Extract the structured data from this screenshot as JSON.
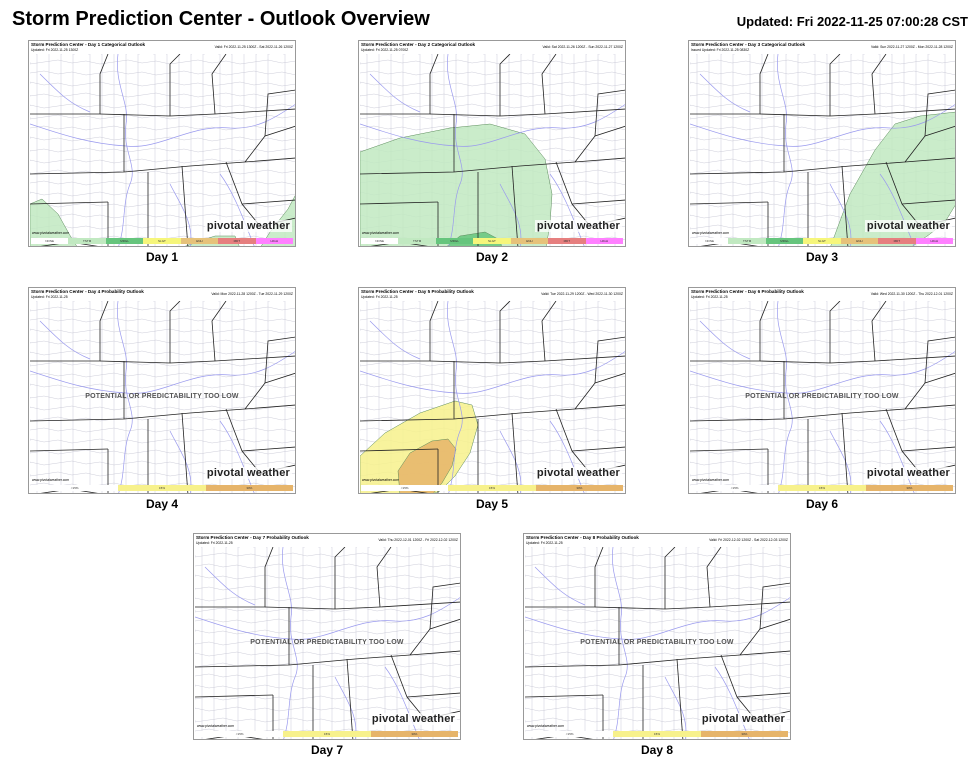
{
  "header": {
    "title": "Storm Prediction Center - Outlook Overview",
    "updated": "Updated: Fri 2022-11-25 07:00:28 CST"
  },
  "colors": {
    "tstm": "#c1e9c1",
    "mrgl": "#66c57d",
    "slgt": "#f6f67b",
    "enh": "#e6c27a",
    "mdt": "#e67f7f",
    "high": "#ff80ff",
    "prob15": "#f7f18c",
    "prob30": "#e6b46a",
    "water": "#ffffff",
    "state_border": "#222222",
    "county": "#b8b8c8",
    "river": "#9a9aee"
  },
  "brand": {
    "name": "pivotal weather",
    "url": "www.pivotalweather.com"
  },
  "legends": {
    "categorical": [
      "NONE",
      "TSTM",
      "MRGL",
      "SLGT",
      "ENH",
      "MDT",
      "HIGH"
    ],
    "probability": [
      "<15%",
      "15%",
      "30%"
    ]
  },
  "low_predictability_note": "POTENTIAL OR PREDICTABILITY TOO LOW",
  "panels": [
    {
      "day_label": "Day 1",
      "map_title": "Storm Prediction Center - Day 1 Categorical Outlook",
      "map_updated": "Updated: Fri 2022-11-25 1300Z",
      "map_valid": "Valid: Fri 2022-11-25 1300Z - Sat 2022-11-26 1200Z",
      "kind": "categorical",
      "risk": [
        {
          "level": "tstm",
          "points": [
            [
              0,
              150
            ],
            [
              12,
              145
            ],
            [
              28,
              160
            ],
            [
              42,
              185
            ],
            [
              48,
              194
            ],
            [
              0,
              194
            ]
          ]
        },
        {
          "level": "tstm",
          "points": [
            [
              150,
              194
            ],
            [
              185,
              182
            ],
            [
              205,
              182
            ],
            [
              210,
              194
            ]
          ]
        },
        {
          "level": "tstm",
          "points": [
            [
              230,
              194
            ],
            [
              240,
              178
            ],
            [
              258,
              155
            ],
            [
              266,
              140
            ],
            [
              266,
              194
            ]
          ]
        }
      ]
    },
    {
      "day_label": "Day 2",
      "map_title": "Storm Prediction Center - Day 2 Categorical Outlook",
      "map_updated": "Updated: Fri 2022-11-25 0700Z",
      "map_valid": "Valid: Sat 2022-11-26 1200Z - Sun 2022-11-27 1200Z",
      "kind": "categorical",
      "risk": [
        {
          "level": "tstm",
          "points": [
            [
              0,
              98
            ],
            [
              40,
              84
            ],
            [
              90,
              74
            ],
            [
              130,
              70
            ],
            [
              165,
              80
            ],
            [
              185,
              105
            ],
            [
              192,
              140
            ],
            [
              190,
              170
            ],
            [
              186,
              194
            ],
            [
              0,
              194
            ]
          ]
        },
        {
          "level": "mrgl",
          "points": [
            [
              85,
              194
            ],
            [
              100,
              182
            ],
            [
              125,
              178
            ],
            [
              140,
              186
            ],
            [
              142,
              194
            ]
          ]
        }
      ]
    },
    {
      "day_label": "Day 3",
      "map_title": "Storm Prediction Center - Day 3 Categorical Outlook",
      "map_updated": "Issued Updated: Fri 2022-11-25 0830Z",
      "map_valid": "Valid: Sun 2022-11-27 1200Z - Mon 2022-11-28 1200Z",
      "kind": "categorical",
      "risk": [
        {
          "level": "tstm",
          "points": [
            [
              140,
              194
            ],
            [
              160,
              140
            ],
            [
              185,
              96
            ],
            [
              205,
              70
            ],
            [
              230,
              62
            ],
            [
              266,
              58
            ],
            [
              266,
              150
            ],
            [
              255,
              168
            ],
            [
              240,
              180
            ],
            [
              220,
              194
            ]
          ]
        }
      ]
    },
    {
      "day_label": "Day 4",
      "map_title": "Storm Prediction Center - Day 4 Probability Outlook",
      "map_updated": "Updated: Fri 2022-11-25",
      "map_valid": "Valid: Mon 2022-11-28 1200Z - Tue 2022-11-29 1200Z",
      "kind": "probability",
      "low": true,
      "risk": []
    },
    {
      "day_label": "Day 5",
      "map_title": "Storm Prediction Center - Day 5 Probability Outlook",
      "map_updated": "Updated: Fri 2022-11-25",
      "map_valid": "Valid: Tue 2022-11-29 1200Z - Wed 2022-11-30 1200Z",
      "kind": "probability",
      "low": false,
      "risk": [
        {
          "level": "prob15",
          "points": [
            [
              0,
              155
            ],
            [
              25,
              132
            ],
            [
              60,
              112
            ],
            [
              95,
              100
            ],
            [
              112,
              104
            ],
            [
              118,
              124
            ],
            [
              110,
              152
            ],
            [
              95,
              175
            ],
            [
              80,
              190
            ],
            [
              70,
              194
            ],
            [
              0,
              194
            ]
          ]
        },
        {
          "level": "prob30",
          "points": [
            [
              38,
              170
            ],
            [
              50,
              152
            ],
            [
              72,
              140
            ],
            [
              88,
              138
            ],
            [
              96,
              148
            ],
            [
              92,
              165
            ],
            [
              82,
              182
            ],
            [
              72,
              194
            ],
            [
              40,
              194
            ]
          ]
        }
      ]
    },
    {
      "day_label": "Day 6",
      "map_title": "Storm Prediction Center - Day 6 Probability Outlook",
      "map_updated": "Updated: Fri 2022-11-25",
      "map_valid": "Valid: Wed 2022-11-30 1200Z - Thu 2022-12-01 1200Z",
      "kind": "probability",
      "low": true,
      "risk": []
    },
    {
      "day_label": "Day 7",
      "map_title": "Storm Prediction Center - Day 7 Probability Outlook",
      "map_updated": "Updated: Fri 2022-11-25",
      "map_valid": "Valid: Thu 2022-12-01 1200Z - Fri 2022-12-02 1200Z",
      "kind": "probability",
      "low": true,
      "risk": []
    },
    {
      "day_label": "Day 8",
      "map_title": "Storm Prediction Center - Day 8 Probability Outlook",
      "map_updated": "Updated: Fri 2022-11-25",
      "map_valid": "Valid: Fri 2022-12-02 1200Z - Sat 2022-12-03 1200Z",
      "kind": "probability",
      "low": true,
      "risk": []
    }
  ]
}
